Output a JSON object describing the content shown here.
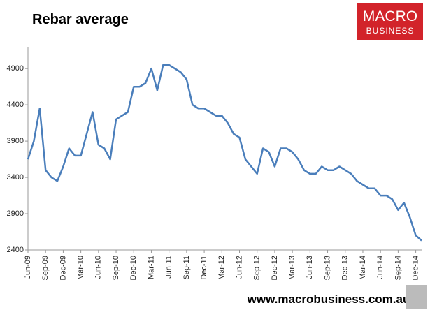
{
  "chart_data": {
    "type": "line",
    "title": "Rebar average",
    "logo": {
      "line1": "MACRO",
      "line2": "BUSINESS"
    },
    "footer": "www.macrobusiness.com.au",
    "color": "#4a7ebb",
    "x": [
      "2009-06",
      "2009-07",
      "2009-08",
      "2009-09",
      "2009-10",
      "2009-11",
      "2009-12",
      "2010-01",
      "2010-02",
      "2010-03",
      "2010-04",
      "2010-05",
      "2010-06",
      "2010-07",
      "2010-08",
      "2010-09",
      "2010-10",
      "2010-11",
      "2010-12",
      "2011-01",
      "2011-02",
      "2011-03",
      "2011-04",
      "2011-05",
      "2011-06",
      "2011-07",
      "2011-08",
      "2011-09",
      "2011-10",
      "2011-11",
      "2011-12",
      "2012-01",
      "2012-02",
      "2012-03",
      "2012-04",
      "2012-05",
      "2012-06",
      "2012-07",
      "2012-08",
      "2012-09",
      "2012-10",
      "2012-11",
      "2012-12",
      "2013-01",
      "2013-02",
      "2013-03",
      "2013-04",
      "2013-05",
      "2013-06",
      "2013-07",
      "2013-08",
      "2013-09",
      "2013-10",
      "2013-11",
      "2013-12",
      "2014-01",
      "2014-02",
      "2014-03",
      "2014-04",
      "2014-05",
      "2014-06",
      "2014-07",
      "2014-08",
      "2014-09",
      "2014-10",
      "2014-11",
      "2014-12",
      "2015-01"
    ],
    "values": [
      3650,
      3900,
      4350,
      3500,
      3400,
      3350,
      3550,
      3800,
      3700,
      3700,
      4000,
      4300,
      3850,
      3800,
      3650,
      4200,
      4250,
      4300,
      4650,
      4650,
      4700,
      4900,
      4600,
      4950,
      4950,
      4900,
      4850,
      4750,
      4400,
      4350,
      4350,
      4300,
      4250,
      4250,
      4150,
      4000,
      3950,
      3650,
      3550,
      3450,
      3800,
      3750,
      3550,
      3800,
      3800,
      3750,
      3650,
      3500,
      3450,
      3450,
      3550,
      3500,
      3500,
      3550,
      3500,
      3450,
      3350,
      3300,
      3250,
      3250,
      3150,
      3150,
      3100,
      2950,
      3050,
      2850,
      2600,
      2530
    ],
    "xlim": [
      "2009-06",
      "2015-01"
    ],
    "xticks": [
      {
        "value": "2009-06",
        "label": "Jun-09"
      },
      {
        "value": "2009-09",
        "label": "Sep-09"
      },
      {
        "value": "2009-12",
        "label": "Dec-09"
      },
      {
        "value": "2010-03",
        "label": "Mar-10"
      },
      {
        "value": "2010-06",
        "label": "Jun-10"
      },
      {
        "value": "2010-09",
        "label": "Sep-10"
      },
      {
        "value": "2010-12",
        "label": "Dec-10"
      },
      {
        "value": "2011-03",
        "label": "Mar-11"
      },
      {
        "value": "2011-06",
        "label": "Jun-11"
      },
      {
        "value": "2011-09",
        "label": "Sep-11"
      },
      {
        "value": "2011-12",
        "label": "Dec-11"
      },
      {
        "value": "2012-03",
        "label": "Mar-12"
      },
      {
        "value": "2012-06",
        "label": "Jun-12"
      },
      {
        "value": "2012-09",
        "label": "Sep-12"
      },
      {
        "value": "2012-12",
        "label": "Dec-12"
      },
      {
        "value": "2013-03",
        "label": "Mar-13"
      },
      {
        "value": "2013-06",
        "label": "Jun-13"
      },
      {
        "value": "2013-09",
        "label": "Sep-13"
      },
      {
        "value": "2013-12",
        "label": "Dec-13"
      },
      {
        "value": "2014-03",
        "label": "Mar-14"
      },
      {
        "value": "2014-06",
        "label": "Jun-14"
      },
      {
        "value": "2014-09",
        "label": "Sep-14"
      },
      {
        "value": "2014-12",
        "label": "Dec-14"
      }
    ],
    "ylim": [
      2400,
      5200
    ],
    "yticks": [
      2400,
      2900,
      3400,
      3900,
      4400,
      4900
    ]
  }
}
